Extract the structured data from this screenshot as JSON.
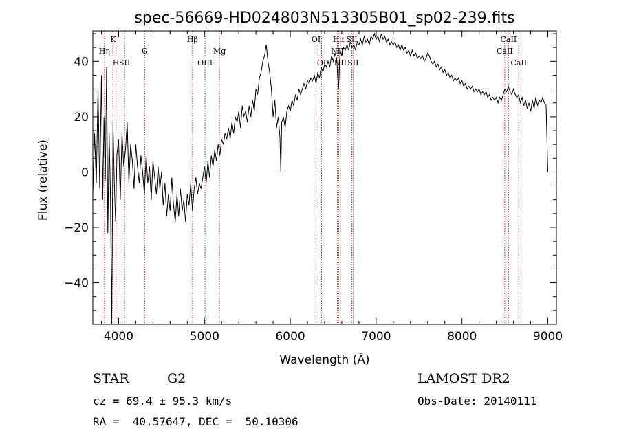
{
  "chart_data": {
    "type": "line",
    "title": "spec-56669-HD024803N513305B01_sp02-239.fits",
    "xlabel": "Wavelength (Å)",
    "ylabel": "Flux (relative)",
    "xlim": [
      3700,
      9100
    ],
    "ylim": [
      -55,
      51
    ],
    "x_ticks": [
      4000,
      5000,
      6000,
      7000,
      8000,
      9000
    ],
    "x_tick_labels": [
      "4000",
      "5000",
      "6000",
      "7000",
      "8000",
      "9000"
    ],
    "y_ticks": [
      -40,
      -20,
      0,
      20,
      40
    ],
    "y_tick_labels": [
      "−40",
      "−20",
      "0",
      "20",
      "40"
    ],
    "colors": {
      "spectrum": "#000000",
      "line_marker": "#a83232",
      "axes": "#000000"
    },
    "series": [
      {
        "values": [
          [
            3700,
            -8
          ],
          [
            3720,
            14
          ],
          [
            3740,
            -4
          ],
          [
            3760,
            30
          ],
          [
            3780,
            -6
          ],
          [
            3800,
            35
          ],
          [
            3815,
            -10
          ],
          [
            3830,
            20
          ],
          [
            3845,
            -3
          ],
          [
            3860,
            38
          ],
          [
            3875,
            -22
          ],
          [
            3890,
            14
          ],
          [
            3905,
            -8
          ],
          [
            3920,
            -55
          ],
          [
            3935,
            18
          ],
          [
            3950,
            -4
          ],
          [
            3965,
            -18
          ],
          [
            3980,
            6
          ],
          [
            4000,
            12
          ],
          [
            4020,
            -10
          ],
          [
            4040,
            14
          ],
          [
            4060,
            2
          ],
          [
            4080,
            8
          ],
          [
            4100,
            18
          ],
          [
            4120,
            -4
          ],
          [
            4140,
            10
          ],
          [
            4160,
            4
          ],
          [
            4180,
            -6
          ],
          [
            4200,
            10
          ],
          [
            4220,
            2
          ],
          [
            4240,
            -4
          ],
          [
            4260,
            6
          ],
          [
            4280,
            0
          ],
          [
            4300,
            -8
          ],
          [
            4320,
            6
          ],
          [
            4340,
            -4
          ],
          [
            4360,
            2
          ],
          [
            4380,
            -10
          ],
          [
            4400,
            4
          ],
          [
            4420,
            -2
          ],
          [
            4440,
            -8
          ],
          [
            4460,
            2
          ],
          [
            4480,
            -6
          ],
          [
            4500,
            0
          ],
          [
            4520,
            -12
          ],
          [
            4540,
            -4
          ],
          [
            4560,
            -16
          ],
          [
            4580,
            -8
          ],
          [
            4600,
            -14
          ],
          [
            4620,
            -2
          ],
          [
            4640,
            -12
          ],
          [
            4660,
            -18
          ],
          [
            4680,
            -8
          ],
          [
            4700,
            -16
          ],
          [
            4720,
            -6
          ],
          [
            4740,
            -14
          ],
          [
            4760,
            -10
          ],
          [
            4780,
            -18
          ],
          [
            4800,
            -8
          ],
          [
            4820,
            -12
          ],
          [
            4840,
            -4
          ],
          [
            4860,
            -14
          ],
          [
            4880,
            -6
          ],
          [
            4900,
            -2
          ],
          [
            4920,
            -8
          ],
          [
            4940,
            -4
          ],
          [
            4960,
            -6
          ],
          [
            4980,
            -2
          ],
          [
            5000,
            2
          ],
          [
            5020,
            -4
          ],
          [
            5040,
            4
          ],
          [
            5060,
            -2
          ],
          [
            5080,
            6
          ],
          [
            5100,
            2
          ],
          [
            5120,
            8
          ],
          [
            5140,
            4
          ],
          [
            5160,
            10
          ],
          [
            5180,
            6
          ],
          [
            5200,
            12
          ],
          [
            5220,
            10
          ],
          [
            5240,
            14
          ],
          [
            5260,
            12
          ],
          [
            5280,
            16
          ],
          [
            5300,
            12
          ],
          [
            5320,
            18
          ],
          [
            5340,
            14
          ],
          [
            5360,
            20
          ],
          [
            5380,
            18
          ],
          [
            5400,
            22
          ],
          [
            5420,
            16
          ],
          [
            5440,
            24
          ],
          [
            5460,
            20
          ],
          [
            5480,
            22
          ],
          [
            5500,
            18
          ],
          [
            5520,
            24
          ],
          [
            5540,
            20
          ],
          [
            5560,
            26
          ],
          [
            5580,
            22
          ],
          [
            5600,
            30
          ],
          [
            5620,
            28
          ],
          [
            5640,
            34
          ],
          [
            5660,
            36
          ],
          [
            5680,
            40
          ],
          [
            5700,
            42
          ],
          [
            5720,
            46
          ],
          [
            5740,
            40
          ],
          [
            5760,
            36
          ],
          [
            5780,
            30
          ],
          [
            5800,
            20
          ],
          [
            5820,
            26
          ],
          [
            5840,
            16
          ],
          [
            5860,
            20
          ],
          [
            5880,
            12
          ],
          [
            5890,
            0
          ],
          [
            5900,
            18
          ],
          [
            5920,
            20
          ],
          [
            5940,
            16
          ],
          [
            5960,
            22
          ],
          [
            5980,
            24
          ],
          [
            6000,
            22
          ],
          [
            6020,
            26
          ],
          [
            6040,
            24
          ],
          [
            6060,
            28
          ],
          [
            6080,
            26
          ],
          [
            6100,
            30
          ],
          [
            6120,
            28
          ],
          [
            6140,
            30
          ],
          [
            6160,
            32
          ],
          [
            6180,
            30
          ],
          [
            6200,
            33
          ],
          [
            6220,
            32
          ],
          [
            6240,
            34
          ],
          [
            6260,
            33
          ],
          [
            6280,
            35
          ],
          [
            6300,
            32
          ],
          [
            6320,
            36
          ],
          [
            6340,
            34
          ],
          [
            6360,
            38
          ],
          [
            6380,
            36
          ],
          [
            6400,
            39
          ],
          [
            6420,
            38
          ],
          [
            6440,
            40
          ],
          [
            6460,
            38
          ],
          [
            6480,
            42
          ],
          [
            6500,
            40
          ],
          [
            6520,
            43
          ],
          [
            6540,
            41
          ],
          [
            6563,
            30
          ],
          [
            6580,
            44
          ],
          [
            6600,
            42
          ],
          [
            6620,
            45
          ],
          [
            6640,
            44
          ],
          [
            6660,
            46
          ],
          [
            6680,
            44
          ],
          [
            6700,
            47
          ],
          [
            6720,
            45
          ],
          [
            6740,
            46
          ],
          [
            6760,
            44
          ],
          [
            6780,
            47
          ],
          [
            6800,
            46
          ],
          [
            6820,
            48
          ],
          [
            6840,
            46
          ],
          [
            6860,
            49
          ],
          [
            6880,
            47
          ],
          [
            6900,
            48
          ],
          [
            6920,
            46
          ],
          [
            6940,
            49
          ],
          [
            6960,
            48
          ],
          [
            6980,
            50
          ],
          [
            7000,
            48
          ],
          [
            7020,
            49
          ],
          [
            7040,
            47
          ],
          [
            7060,
            50
          ],
          [
            7080,
            48
          ],
          [
            7100,
            49
          ],
          [
            7120,
            47
          ],
          [
            7140,
            48
          ],
          [
            7160,
            46
          ],
          [
            7180,
            47
          ],
          [
            7200,
            46
          ],
          [
            7220,
            47
          ],
          [
            7240,
            45
          ],
          [
            7260,
            46
          ],
          [
            7280,
            44
          ],
          [
            7300,
            46
          ],
          [
            7320,
            44
          ],
          [
            7340,
            45
          ],
          [
            7360,
            43
          ],
          [
            7380,
            44
          ],
          [
            7400,
            42
          ],
          [
            7420,
            44
          ],
          [
            7440,
            42
          ],
          [
            7460,
            43
          ],
          [
            7480,
            41
          ],
          [
            7500,
            42
          ],
          [
            7520,
            41
          ],
          [
            7540,
            42
          ],
          [
            7560,
            40
          ],
          [
            7580,
            41
          ],
          [
            7600,
            43
          ],
          [
            7620,
            42
          ],
          [
            7640,
            40
          ],
          [
            7660,
            39
          ],
          [
            7680,
            40
          ],
          [
            7700,
            38
          ],
          [
            7720,
            39
          ],
          [
            7740,
            37
          ],
          [
            7760,
            38
          ],
          [
            7780,
            36
          ],
          [
            7800,
            37
          ],
          [
            7820,
            35
          ],
          [
            7840,
            36
          ],
          [
            7860,
            34
          ],
          [
            7880,
            35
          ],
          [
            7900,
            33
          ],
          [
            7920,
            34
          ],
          [
            7940,
            33
          ],
          [
            7960,
            34
          ],
          [
            7980,
            32
          ],
          [
            8000,
            33
          ],
          [
            8020,
            31
          ],
          [
            8040,
            32
          ],
          [
            8060,
            30
          ],
          [
            8080,
            31
          ],
          [
            8100,
            30
          ],
          [
            8120,
            31
          ],
          [
            8140,
            29
          ],
          [
            8160,
            30
          ],
          [
            8180,
            29
          ],
          [
            8200,
            30
          ],
          [
            8220,
            28
          ],
          [
            8240,
            29
          ],
          [
            8260,
            28
          ],
          [
            8280,
            29
          ],
          [
            8300,
            27
          ],
          [
            8320,
            28
          ],
          [
            8340,
            26
          ],
          [
            8360,
            27
          ],
          [
            8380,
            26
          ],
          [
            8400,
            27
          ],
          [
            8420,
            25
          ],
          [
            8440,
            27
          ],
          [
            8460,
            26
          ],
          [
            8480,
            28
          ],
          [
            8500,
            30
          ],
          [
            8520,
            29
          ],
          [
            8540,
            31
          ],
          [
            8560,
            29
          ],
          [
            8580,
            28
          ],
          [
            8600,
            30
          ],
          [
            8620,
            28
          ],
          [
            8640,
            27
          ],
          [
            8660,
            28
          ],
          [
            8680,
            25
          ],
          [
            8700,
            27
          ],
          [
            8720,
            24
          ],
          [
            8740,
            26
          ],
          [
            8760,
            23
          ],
          [
            8780,
            25
          ],
          [
            8800,
            22
          ],
          [
            8820,
            26
          ],
          [
            8840,
            23
          ],
          [
            8860,
            27
          ],
          [
            8880,
            24
          ],
          [
            8900,
            26
          ],
          [
            8920,
            25
          ],
          [
            8940,
            27
          ],
          [
            8960,
            25
          ],
          [
            8980,
            24
          ],
          [
            9000,
            0
          ]
        ]
      }
    ],
    "markers": [
      {
        "label": "Hη",
        "x": 3835,
        "row": 1
      },
      {
        "label": "K",
        "x": 3934,
        "row": 0
      },
      {
        "label": "H",
        "x": 3969,
        "row": 2
      },
      {
        "label": "SII",
        "x": 4069,
        "row": 2
      },
      {
        "label": "G",
        "x": 4304,
        "row": 1
      },
      {
        "label": "Hβ",
        "x": 4861,
        "row": 0
      },
      {
        "label": "OIII",
        "x": 5007,
        "row": 2
      },
      {
        "label": "Mg",
        "x": 5175,
        "row": 1
      },
      {
        "label": "OI",
        "x": 6300,
        "row": 0
      },
      {
        "label": "OI",
        "x": 6364,
        "row": 2
      },
      {
        "label": "Hα",
        "x": 6563,
        "row": 0
      },
      {
        "label": "NII",
        "x": 6548,
        "row": 1
      },
      {
        "label": "NII",
        "x": 6583,
        "row": 2
      },
      {
        "label": "SII",
        "x": 6716,
        "row": 0
      },
      {
        "label": "SII",
        "x": 6731,
        "row": 2
      },
      {
        "label": "CaII",
        "x": 8498,
        "row": 1
      },
      {
        "label": "CaII",
        "x": 8542,
        "row": 0
      },
      {
        "label": "CaII",
        "x": 8662,
        "row": 2
      }
    ]
  },
  "info": {
    "object_type": "STAR",
    "subclass": "G2",
    "survey": "LAMOST DR2",
    "cz": "cz = 69.4 ± 95.3 km/s",
    "obs_date": "Obs-Date: 20140111",
    "radec": "RA =  40.57647, DEC =  50.10306"
  }
}
